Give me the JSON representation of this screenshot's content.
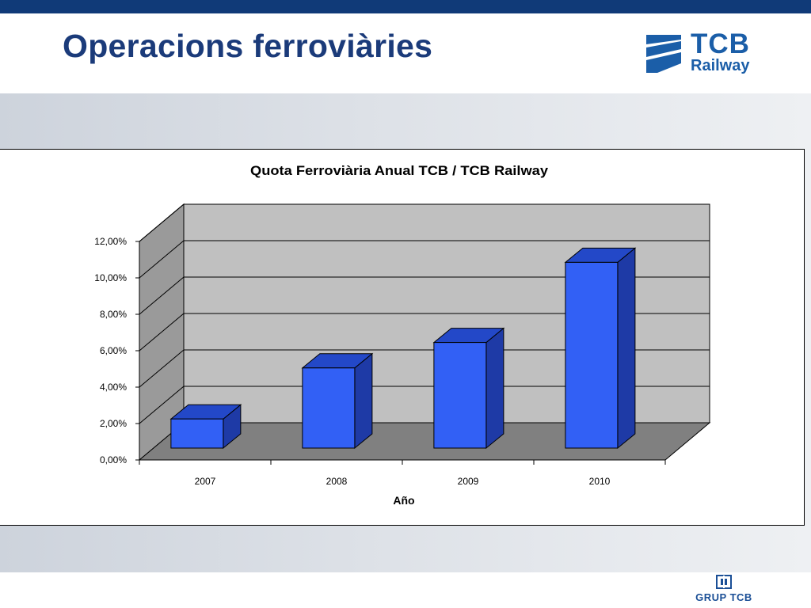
{
  "slide": {
    "title": "Operacions ferroviàries"
  },
  "brand": {
    "logo_name": "TCB",
    "logo_sub": "Railway",
    "footer_logo": "GRUP TCB",
    "colors": {
      "title": "#1b3b7a",
      "logo": "#1b5ea8",
      "top_bar": "#103a78"
    }
  },
  "chart_data": {
    "type": "bar",
    "style": "3d-column",
    "title": "Quota Ferroviària Anual TCB / TCB Railway",
    "xlabel": "Año",
    "ylabel": "",
    "categories": [
      "2007",
      "2008",
      "2009",
      "2010"
    ],
    "values": [
      1.6,
      4.4,
      5.8,
      10.2
    ],
    "y_ticks": [
      0,
      2,
      4,
      6,
      8,
      10,
      12
    ],
    "y_tick_labels": [
      "0,00%",
      "2,00%",
      "4,00%",
      "6,00%",
      "8,00%",
      "10,00%",
      "12,00%"
    ],
    "ylim": [
      0,
      12
    ],
    "unit": "%",
    "grid": true,
    "legend": "none",
    "colors": {
      "bar_front": "#3260f5",
      "bar_side": "#1e3aa6",
      "bar_top": "#2348c8",
      "wall": "#c0c0c0",
      "floor": "#808080"
    }
  }
}
